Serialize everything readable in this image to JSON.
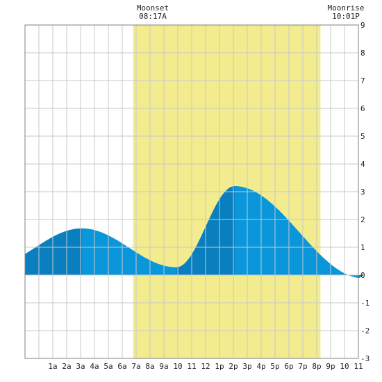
{
  "moon": {
    "set_label": "Moonset",
    "set_time": "08:17A",
    "rise_label": "Moonrise",
    "rise_time": "10:01P"
  },
  "colors": {
    "daylight": "#f2ec8f",
    "grid": "#c8c8c8",
    "tide_rising": "#0a7fbf",
    "tide_falling": "#0a96da",
    "background": "#ffffff"
  },
  "chart_data": {
    "type": "area",
    "title": "",
    "xlabel": "",
    "ylabel": "",
    "x_range_hours": [
      0,
      24
    ],
    "ylim": [
      -3,
      9
    ],
    "y_ticks": [
      "9",
      "8",
      "7",
      "6",
      "5",
      "4",
      "3",
      "2",
      "1",
      "0",
      "-1",
      "-2",
      "-3"
    ],
    "x_tick_labels": [
      "1a",
      "2a",
      "3a",
      "4a",
      "5a",
      "6a",
      "7a",
      "8a",
      "9a",
      "10",
      "11",
      "12",
      "1p",
      "2p",
      "3p",
      "4p",
      "5p",
      "6p",
      "7p",
      "8p",
      "9p",
      "10",
      "11"
    ],
    "daylight_hours": [
      6.78,
      20.27
    ],
    "grid": true,
    "tide_extremes": [
      {
        "hour": 3.1,
        "height": 1.68,
        "kind": "high"
      },
      {
        "hour": 9.9,
        "height": 0.28,
        "kind": "low"
      },
      {
        "hour": 14.1,
        "height": 3.2,
        "kind": "high"
      },
      {
        "hour": 23.4,
        "height": -0.12,
        "kind": "low"
      }
    ],
    "start_height": 0.05,
    "end_height": -0.08
  }
}
